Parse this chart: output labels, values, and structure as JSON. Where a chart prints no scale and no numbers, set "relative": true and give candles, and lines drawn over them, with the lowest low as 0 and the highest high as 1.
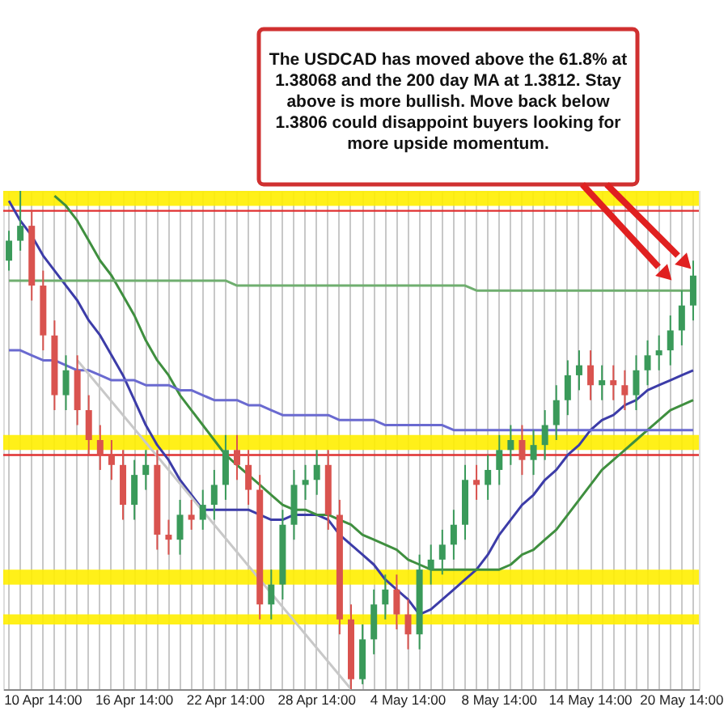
{
  "chart_data": {
    "type": "candlestick",
    "relative": true,
    "grid": "x",
    "categories": [
      null,
      null,
      null,
      "10 Apr 14:00",
      null,
      null,
      null,
      null,
      null,
      null,
      null,
      "16 Apr 14:00",
      null,
      null,
      null,
      null,
      null,
      null,
      null,
      "22 Apr 14:00",
      null,
      null,
      null,
      null,
      null,
      null,
      null,
      "28 Apr 14:00",
      null,
      null,
      null,
      null,
      null,
      null,
      null,
      "4 May 14:00",
      null,
      null,
      null,
      null,
      null,
      null,
      null,
      "8 May 14:00",
      null,
      null,
      null,
      null,
      null,
      null,
      null,
      "14 May 14:00",
      null,
      null,
      null,
      null,
      null,
      null,
      null,
      "20 May 14:00",
      null
    ],
    "ohlc": [
      [
        0.86,
        0.92,
        0.84,
        0.9
      ],
      [
        0.9,
        1.0,
        0.88,
        0.93
      ],
      [
        0.93,
        0.96,
        0.78,
        0.81
      ],
      [
        0.81,
        0.84,
        0.68,
        0.71
      ],
      [
        0.71,
        0.74,
        0.56,
        0.59
      ],
      [
        0.59,
        0.67,
        0.56,
        0.64
      ],
      [
        0.64,
        0.67,
        0.53,
        0.56
      ],
      [
        0.56,
        0.59,
        0.47,
        0.5
      ],
      [
        0.5,
        0.53,
        0.44,
        0.47
      ],
      [
        0.47,
        0.5,
        0.42,
        0.45
      ],
      [
        0.45,
        0.48,
        0.34,
        0.37
      ],
      [
        0.37,
        0.46,
        0.34,
        0.43
      ],
      [
        0.43,
        0.48,
        0.4,
        0.45
      ],
      [
        0.45,
        0.48,
        0.28,
        0.31
      ],
      [
        0.31,
        0.34,
        0.27,
        0.3
      ],
      [
        0.3,
        0.38,
        0.27,
        0.35
      ],
      [
        0.35,
        0.38,
        0.32,
        0.34
      ],
      [
        0.34,
        0.4,
        0.32,
        0.37
      ],
      [
        0.37,
        0.44,
        0.34,
        0.41
      ],
      [
        0.41,
        0.51,
        0.38,
        0.48
      ],
      [
        0.48,
        0.51,
        0.42,
        0.45
      ],
      [
        0.45,
        0.48,
        0.37,
        0.4
      ],
      [
        0.4,
        0.43,
        0.14,
        0.17
      ],
      [
        0.17,
        0.24,
        0.14,
        0.21
      ],
      [
        0.21,
        0.36,
        0.18,
        0.33
      ],
      [
        0.33,
        0.44,
        0.3,
        0.41
      ],
      [
        0.41,
        0.45,
        0.38,
        0.42
      ],
      [
        0.42,
        0.48,
        0.39,
        0.45
      ],
      [
        0.45,
        0.48,
        0.32,
        0.35
      ],
      [
        0.35,
        0.38,
        0.11,
        0.14
      ],
      [
        0.14,
        0.17,
        0.0,
        0.02
      ],
      [
        0.02,
        0.13,
        0.01,
        0.1
      ],
      [
        0.1,
        0.2,
        0.07,
        0.17
      ],
      [
        0.17,
        0.23,
        0.14,
        0.2
      ],
      [
        0.2,
        0.23,
        0.12,
        0.15
      ],
      [
        0.15,
        0.18,
        0.08,
        0.11
      ],
      [
        0.11,
        0.27,
        0.08,
        0.24
      ],
      [
        0.24,
        0.29,
        0.21,
        0.26
      ],
      [
        0.26,
        0.32,
        0.23,
        0.29
      ],
      [
        0.29,
        0.36,
        0.26,
        0.33
      ],
      [
        0.33,
        0.45,
        0.3,
        0.42
      ],
      [
        0.42,
        0.45,
        0.38,
        0.41
      ],
      [
        0.41,
        0.47,
        0.38,
        0.44
      ],
      [
        0.44,
        0.51,
        0.41,
        0.48
      ],
      [
        0.48,
        0.53,
        0.45,
        0.5
      ],
      [
        0.5,
        0.53,
        0.43,
        0.46
      ],
      [
        0.46,
        0.52,
        0.43,
        0.49
      ],
      [
        0.49,
        0.56,
        0.46,
        0.53
      ],
      [
        0.53,
        0.61,
        0.5,
        0.58
      ],
      [
        0.58,
        0.66,
        0.55,
        0.63
      ],
      [
        0.63,
        0.68,
        0.6,
        0.65
      ],
      [
        0.65,
        0.68,
        0.58,
        0.61
      ],
      [
        0.61,
        0.65,
        0.58,
        0.62
      ],
      [
        0.62,
        0.65,
        0.58,
        0.61
      ],
      [
        0.61,
        0.64,
        0.56,
        0.59
      ],
      [
        0.59,
        0.67,
        0.56,
        0.64
      ],
      [
        0.64,
        0.7,
        0.61,
        0.67
      ],
      [
        0.67,
        0.71,
        0.64,
        0.68
      ],
      [
        0.68,
        0.75,
        0.65,
        0.72
      ],
      [
        0.72,
        0.8,
        0.69,
        0.77
      ],
      [
        0.77,
        0.86,
        0.74,
        0.83
      ]
    ],
    "colors": [
      "#3a9a5a",
      "#3a9a5a",
      "#d9534f",
      "#d9534f",
      "#d9534f",
      "#3a9a5a",
      "#d9534f",
      "#d9534f",
      "#d9534f",
      "#d9534f",
      "#d9534f",
      "#3a9a5a",
      "#3a9a5a",
      "#d9534f",
      "#d9534f",
      "#3a9a5a",
      "#d9534f",
      "#3a9a5a",
      "#3a9a5a",
      "#3a9a5a",
      "#d9534f",
      "#d9534f",
      "#d9534f",
      "#3a9a5a",
      "#3a9a5a",
      "#3a9a5a",
      "#3a9a5a",
      "#3a9a5a",
      "#d9534f",
      "#d9534f",
      "#d9534f",
      "#3a9a5a",
      "#3a9a5a",
      "#3a9a5a",
      "#d9534f",
      "#d9534f",
      "#3a9a5a",
      "#3a9a5a",
      "#3a9a5a",
      "#3a9a5a",
      "#3a9a5a",
      "#d9534f",
      "#3a9a5a",
      "#3a9a5a",
      "#3a9a5a",
      "#d9534f",
      "#3a9a5a",
      "#3a9a5a",
      "#3a9a5a",
      "#3a9a5a",
      "#3a9a5a",
      "#d9534f",
      "#3a9a5a",
      "#d9534f",
      "#d9534f",
      "#3a9a5a",
      "#3a9a5a",
      "#3a9a5a",
      "#3a9a5a",
      "#3a9a5a",
      "#3a9a5a"
    ],
    "series": [
      {
        "type": "line",
        "color": "#3c3ca8",
        "values": [
          0.98,
          0.94,
          0.91,
          0.87,
          0.84,
          0.81,
          0.78,
          0.74,
          0.71,
          0.67,
          0.63,
          0.58,
          0.53,
          0.49,
          0.46,
          0.42,
          0.39,
          0.36,
          0.36,
          0.36,
          0.36,
          0.36,
          0.35,
          0.34,
          0.34,
          0.35,
          0.35,
          0.35,
          0.34,
          0.31,
          0.29,
          0.27,
          0.25,
          0.22,
          0.2,
          0.18,
          0.15,
          0.16,
          0.18,
          0.2,
          0.22,
          0.24,
          0.27,
          0.31,
          0.34,
          0.37,
          0.39,
          0.42,
          0.44,
          0.47,
          0.49,
          0.52,
          0.54,
          0.55,
          0.57,
          0.58,
          0.6,
          0.61,
          0.62,
          0.63,
          0.64
        ]
      },
      {
        "type": "line",
        "color": "#3f8f3f",
        "values": [
          null,
          null,
          null,
          null,
          0.99,
          0.97,
          0.94,
          0.9,
          0.86,
          0.83,
          0.79,
          0.75,
          0.7,
          0.66,
          0.63,
          0.59,
          0.56,
          0.53,
          0.5,
          0.47,
          0.45,
          0.43,
          0.41,
          0.39,
          0.37,
          0.36,
          0.36,
          0.35,
          0.35,
          0.34,
          0.33,
          0.31,
          0.3,
          0.29,
          0.28,
          0.26,
          0.25,
          0.24,
          0.24,
          0.24,
          0.24,
          0.24,
          0.24,
          0.24,
          0.25,
          0.27,
          0.28,
          0.3,
          0.32,
          0.35,
          0.38,
          0.41,
          0.44,
          0.46,
          0.48,
          0.5,
          0.52,
          0.54,
          0.56,
          0.57,
          0.58
        ]
      },
      {
        "type": "line",
        "color": "#6a6ad0",
        "values": [
          0.68,
          0.68,
          0.67,
          0.66,
          0.66,
          0.65,
          0.64,
          0.64,
          0.63,
          0.62,
          0.62,
          0.62,
          0.61,
          0.61,
          0.61,
          0.6,
          0.6,
          0.59,
          0.58,
          0.58,
          0.58,
          0.57,
          0.57,
          0.56,
          0.55,
          0.55,
          0.55,
          0.55,
          0.55,
          0.54,
          0.54,
          0.54,
          0.54,
          0.53,
          0.53,
          0.53,
          0.53,
          0.53,
          0.53,
          0.52,
          0.52,
          0.52,
          0.52,
          0.52,
          0.52,
          0.52,
          0.52,
          0.52,
          0.52,
          0.52,
          0.52,
          0.52,
          0.52,
          0.52,
          0.52,
          0.52,
          0.52,
          0.52,
          0.52,
          0.52,
          0.52
        ]
      },
      {
        "type": "line",
        "color": "#6fae6f",
        "values": [
          0.82,
          0.82,
          0.82,
          0.82,
          0.82,
          0.82,
          0.82,
          0.82,
          0.82,
          0.82,
          0.82,
          0.82,
          0.82,
          0.82,
          0.82,
          0.82,
          0.82,
          0.82,
          0.82,
          0.82,
          0.81,
          0.81,
          0.81,
          0.81,
          0.81,
          0.81,
          0.81,
          0.81,
          0.81,
          0.81,
          0.81,
          0.81,
          0.81,
          0.81,
          0.81,
          0.81,
          0.81,
          0.81,
          0.81,
          0.81,
          0.81,
          0.8,
          0.8,
          0.8,
          0.8,
          0.8,
          0.8,
          0.8,
          0.8,
          0.8,
          0.8,
          0.8,
          0.8,
          0.8,
          0.8,
          0.8,
          0.8,
          0.8,
          0.8,
          0.8,
          0.8
        ]
      },
      {
        "type": "line",
        "color": "#c8c8c8",
        "values": [
          null,
          null,
          null,
          null,
          null,
          null,
          0.66,
          null,
          null,
          null,
          null,
          null,
          null,
          null,
          null,
          null,
          null,
          null,
          null,
          null,
          null,
          null,
          null,
          null,
          null,
          null,
          null,
          null,
          null,
          null,
          0.0,
          null,
          null,
          null,
          null,
          null,
          null,
          null,
          null,
          null,
          null,
          null,
          null,
          null,
          null,
          null,
          null,
          null,
          null,
          null,
          null,
          null,
          null,
          null,
          null,
          null,
          null,
          null,
          null,
          null,
          null
        ]
      }
    ],
    "bands": [
      {
        "axis": "y",
        "from": 0.97,
        "to": 1.0,
        "color": "#ffee00"
      },
      {
        "axis": "y",
        "from": 0.48,
        "to": 0.51,
        "color": "#ffee00"
      },
      {
        "axis": "y",
        "from": 0.21,
        "to": 0.24,
        "color": "#ffee00"
      },
      {
        "axis": "y",
        "from": 0.13,
        "to": 0.15,
        "color": "#ffee00"
      }
    ],
    "ref_lines": [
      {
        "axis": "y",
        "value": 0.96,
        "color": "#e03030"
      },
      {
        "axis": "y",
        "value": 0.47,
        "color": "#e03030"
      }
    ],
    "annotations": [
      "The USDCAD has moved above the 61.8% at 1.38068 and the 200 day MA at 1.3812. Stay above is more bullish. Move back below 1.3806 could disappoint buyers looking for more upside momentum."
    ]
  }
}
